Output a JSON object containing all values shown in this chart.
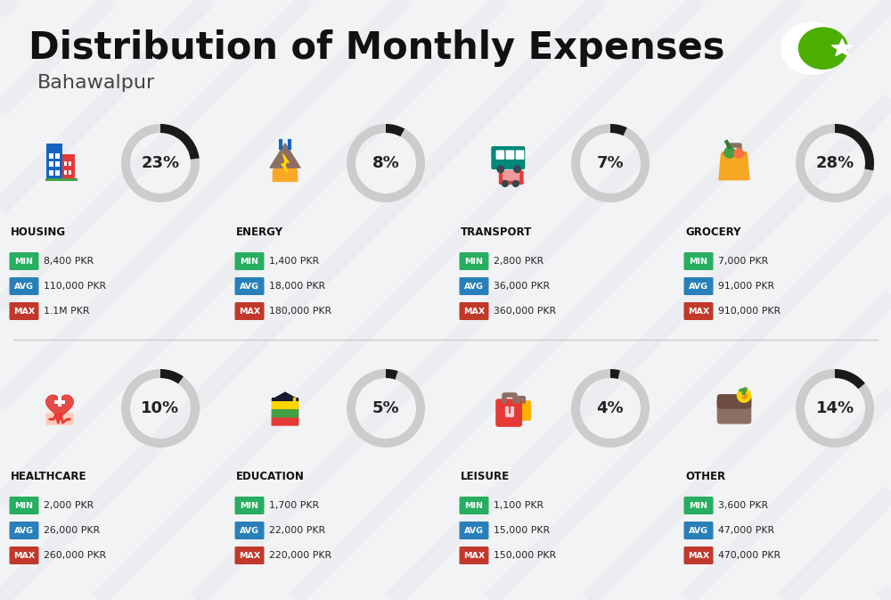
{
  "title": "Distribution of Monthly Expenses",
  "subtitle": "Bahawalpur",
  "background_color": "#f2f3f5",
  "title_fontsize": 30,
  "subtitle_fontsize": 16,
  "categories": [
    {
      "name": "HOUSING",
      "pct": 23,
      "min": "8,400 PKR",
      "avg": "110,000 PKR",
      "max": "1.1M PKR",
      "row": 0,
      "col": 0
    },
    {
      "name": "ENERGY",
      "pct": 8,
      "min": "1,400 PKR",
      "avg": "18,000 PKR",
      "max": "180,000 PKR",
      "row": 0,
      "col": 1
    },
    {
      "name": "TRANSPORT",
      "pct": 7,
      "min": "2,800 PKR",
      "avg": "36,000 PKR",
      "max": "360,000 PKR",
      "row": 0,
      "col": 2
    },
    {
      "name": "GROCERY",
      "pct": 28,
      "min": "7,000 PKR",
      "avg": "91,000 PKR",
      "max": "910,000 PKR",
      "row": 0,
      "col": 3
    },
    {
      "name": "HEALTHCARE",
      "pct": 10,
      "min": "2,000 PKR",
      "avg": "26,000 PKR",
      "max": "260,000 PKR",
      "row": 1,
      "col": 0
    },
    {
      "name": "EDUCATION",
      "pct": 5,
      "min": "1,700 PKR",
      "avg": "22,000 PKR",
      "max": "220,000 PKR",
      "row": 1,
      "col": 1
    },
    {
      "name": "LEISURE",
      "pct": 4,
      "min": "1,100 PKR",
      "avg": "15,000 PKR",
      "max": "150,000 PKR",
      "row": 1,
      "col": 2
    },
    {
      "name": "OTHER",
      "pct": 14,
      "min": "3,600 PKR",
      "avg": "47,000 PKR",
      "max": "470,000 PKR",
      "row": 1,
      "col": 3
    }
  ],
  "min_color": "#27ae60",
  "avg_color": "#2980b9",
  "max_color": "#c0392b",
  "ring_filled_color": "#1a1a1a",
  "ring_empty_color": "#cccccc",
  "flag_color": "#4caf00",
  "stripe_color": "#e4e6ea",
  "divider_color": "#cccccc",
  "text_color": "#111111",
  "value_color": "#222222"
}
